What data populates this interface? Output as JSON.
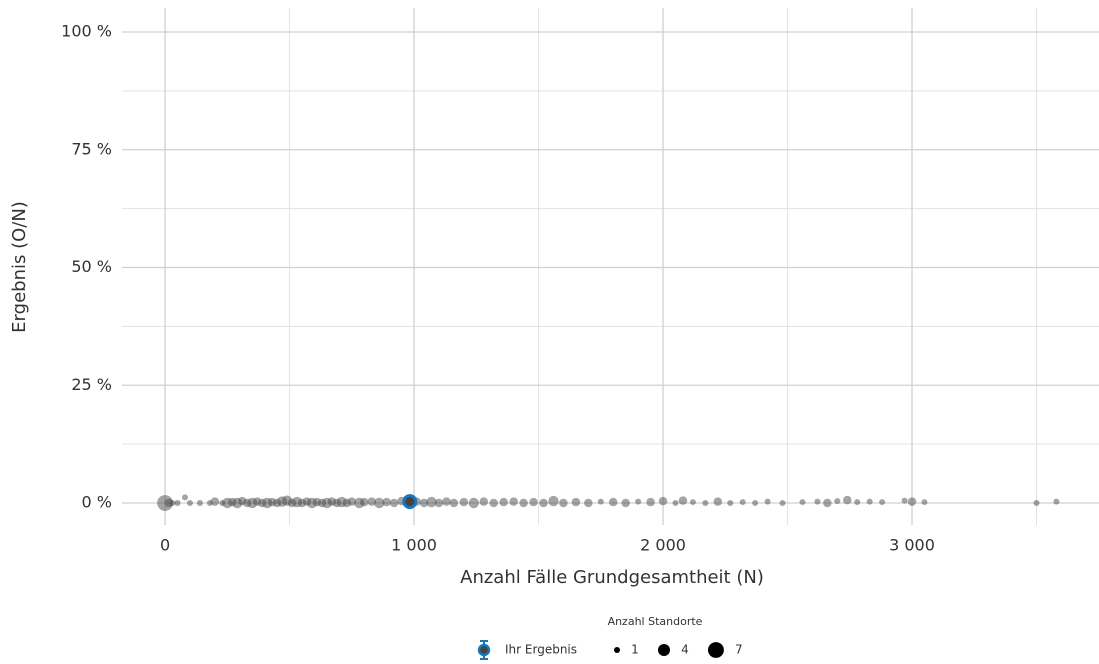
{
  "chart_data": {
    "type": "scatter",
    "xlabel": "Anzahl Fälle Grundgesamtheit (N)",
    "ylabel": "Ergebnis (O/N)",
    "xlim": [
      -173,
      3751
    ],
    "ylim": [
      -4.67,
      105.1
    ],
    "xticks": [
      0,
      {
        "value": 1000,
        "label": "1 000"
      },
      {
        "value": 2000,
        "label": "2 000"
      },
      {
        "value": 3000,
        "label": "3 000"
      }
    ],
    "x_minor_ticks": [
      500,
      1500,
      2500,
      3500
    ],
    "yticks": [
      {
        "value": 0,
        "label": "0 %"
      },
      {
        "value": 25,
        "label": "25 %"
      },
      {
        "value": 50,
        "label": "50 %"
      },
      {
        "value": 75,
        "label": "75 %"
      },
      {
        "value": 100,
        "label": "100 %"
      }
    ],
    "y_minor_ticks": [
      12.5,
      37.5,
      62.5,
      87.5
    ],
    "grid": true,
    "series": [
      {
        "color": "#4a4a4a",
        "opacity": 0.5,
        "x": [
          0,
          15,
          30,
          50,
          80,
          100,
          140,
          180,
          200,
          230,
          250,
          270,
          290,
          310,
          330,
          350,
          370,
          390,
          410,
          430,
          450,
          470,
          490,
          510,
          530,
          550,
          570,
          590,
          610,
          630,
          650,
          670,
          690,
          710,
          730,
          750,
          780,
          800,
          830,
          860,
          890,
          920,
          950,
          1010,
          1040,
          1070,
          1100,
          1130,
          1160,
          1200,
          1240,
          1280,
          1320,
          1360,
          1400,
          1440,
          1480,
          1520,
          1560,
          1600,
          1650,
          1700,
          1750,
          1800,
          1850,
          1900,
          1950,
          2000,
          2050,
          2080,
          2120,
          2170,
          2220,
          2270,
          2320,
          2370,
          2420,
          2480,
          2560,
          2620,
          2660,
          2700,
          2740,
          2780,
          2830,
          2880,
          2970,
          3000,
          3050,
          3500,
          3580
        ],
        "y": [
          0,
          0,
          0,
          0,
          1.2,
          0,
          0,
          0,
          0.3,
          0,
          0,
          0.2,
          0,
          0.4,
          0,
          0,
          0.3,
          0,
          0,
          0.2,
          0,
          0.3,
          0.5,
          0,
          0.2,
          0,
          0.3,
          0,
          0.2,
          0,
          0,
          0.3,
          0,
          0.2,
          0,
          0.3,
          0,
          0.2,
          0.3,
          0,
          0.2,
          0,
          0.4,
          0.3,
          0,
          0.2,
          0,
          0.3,
          0,
          0.2,
          0,
          0.3,
          0,
          0.2,
          0.3,
          0,
          0.2,
          0,
          0.4,
          0,
          0.2,
          0,
          0.3,
          0.2,
          0,
          0.3,
          0.2,
          0.4,
          0,
          0.5,
          0.2,
          0,
          0.3,
          0,
          0.2,
          0,
          0.3,
          0,
          0.2,
          0.3,
          0,
          0.4,
          0.6,
          0.2,
          0.3,
          0.2,
          0.5,
          0.3,
          0.2,
          0,
          0.3
        ],
        "size": [
          7,
          2,
          1,
          1,
          1,
          1,
          1,
          1,
          2,
          1,
          3,
          2,
          3,
          2,
          2,
          3,
          2,
          2,
          3,
          2,
          2,
          3,
          3,
          2,
          3,
          2,
          2,
          3,
          2,
          2,
          3,
          2,
          2,
          3,
          2,
          2,
          3,
          2,
          2,
          3,
          2,
          2,
          2,
          2,
          2,
          3,
          2,
          2,
          2,
          2,
          3,
          2,
          2,
          2,
          2,
          2,
          2,
          2,
          3,
          2,
          2,
          2,
          1,
          2,
          2,
          1,
          2,
          2,
          1,
          2,
          1,
          1,
          2,
          1,
          1,
          1,
          1,
          1,
          1,
          1,
          2,
          1,
          2,
          1,
          1,
          1,
          1,
          2,
          1,
          1,
          1
        ]
      },
      {
        "name": "Ihr Ergebnis",
        "color": "#1b75bb",
        "x": [
          983
        ],
        "y": [
          0.3
        ],
        "size": [
          4
        ]
      }
    ],
    "size_legend": {
      "title": "Anzahl Standorte",
      "values": [
        1,
        4,
        7
      ]
    }
  }
}
